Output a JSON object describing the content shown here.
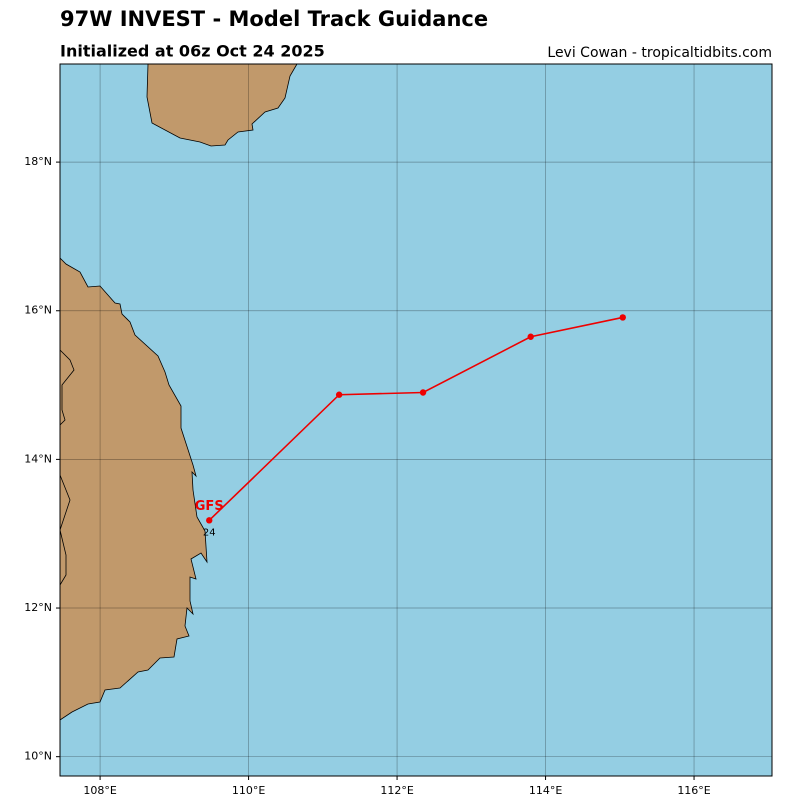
{
  "chart_data": {
    "type": "line",
    "title": "97W INVEST - Model Track Guidance",
    "subtitle": "Initialized at 06z Oct 24 2025",
    "credit": "Levi Cowan - tropicaltidbits.com",
    "xlim": [
      107.46,
      117.05
    ],
    "ylim": [
      9.74,
      19.32
    ],
    "xticks": [
      {
        "value": 108,
        "label": "108°E"
      },
      {
        "value": 110,
        "label": "110°E"
      },
      {
        "value": 112,
        "label": "112°E"
      },
      {
        "value": 114,
        "label": "114°E"
      },
      {
        "value": 116,
        "label": "116°E"
      }
    ],
    "yticks": [
      {
        "value": 10,
        "label": "10°N"
      },
      {
        "value": 12,
        "label": "12°N"
      },
      {
        "value": 14,
        "label": "14°N"
      },
      {
        "value": 16,
        "label": "16°N"
      },
      {
        "value": 18,
        "label": "18°N"
      }
    ],
    "grid": true,
    "series": [
      {
        "name": "GFS",
        "color": "#ee0000",
        "x": [
          109.47,
          111.22,
          112.35,
          113.8,
          115.04
        ],
        "values": [
          13.18,
          14.87,
          14.9,
          15.65,
          15.91
        ],
        "start_hour": 24
      }
    ]
  }
}
